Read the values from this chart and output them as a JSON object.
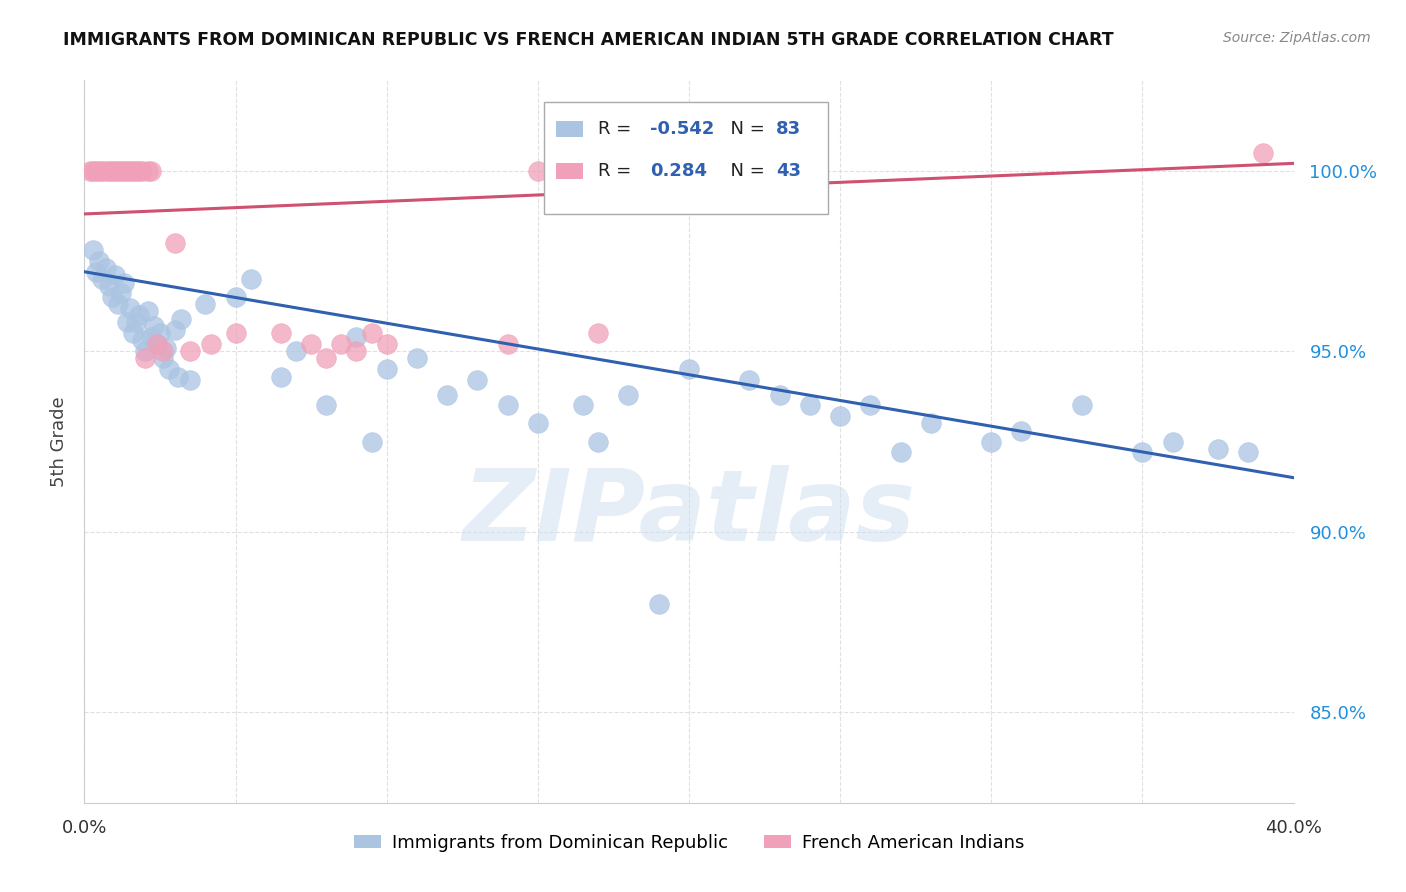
{
  "title": "IMMIGRANTS FROM DOMINICAN REPUBLIC VS FRENCH AMERICAN INDIAN 5TH GRADE CORRELATION CHART",
  "source": "Source: ZipAtlas.com",
  "ylabel": "5th Grade",
  "y_ticks": [
    85.0,
    90.0,
    95.0,
    100.0
  ],
  "y_tick_labels": [
    "85.0%",
    "90.0%",
    "95.0%",
    "100.0%"
  ],
  "xlim": [
    0.0,
    40.0
  ],
  "ylim": [
    82.5,
    102.5
  ],
  "blue_color": "#aac4e2",
  "blue_line_color": "#3060b0",
  "pink_color": "#f0a0b8",
  "pink_line_color": "#d05070",
  "legend_R_blue": "-0.542",
  "legend_N_blue": "83",
  "legend_R_pink": "0.284",
  "legend_N_pink": "43",
  "legend_label_blue": "Immigrants from Dominican Republic",
  "legend_label_pink": "French American Indians",
  "watermark": "ZIPatlas",
  "blue_scatter_x": [
    0.3,
    0.4,
    0.5,
    0.6,
    0.7,
    0.8,
    0.9,
    1.0,
    1.1,
    1.2,
    1.3,
    1.4,
    1.5,
    1.6,
    1.7,
    1.8,
    1.9,
    2.0,
    2.1,
    2.2,
    2.3,
    2.4,
    2.5,
    2.6,
    2.7,
    2.8,
    3.0,
    3.1,
    3.2,
    3.5,
    4.0,
    5.0,
    5.5,
    6.5,
    7.0,
    8.0,
    9.0,
    9.5,
    10.0,
    11.0,
    12.0,
    13.0,
    14.0,
    15.0,
    16.5,
    17.0,
    18.0,
    19.0,
    20.0,
    22.0,
    23.0,
    24.0,
    25.0,
    26.0,
    27.0,
    28.0,
    30.0,
    31.0,
    33.0,
    35.0,
    36.0,
    37.5,
    38.5
  ],
  "blue_scatter_y": [
    97.8,
    97.2,
    97.5,
    97.0,
    97.3,
    96.8,
    96.5,
    97.1,
    96.3,
    96.6,
    96.9,
    95.8,
    96.2,
    95.5,
    95.8,
    96.0,
    95.3,
    95.0,
    96.1,
    95.4,
    95.7,
    95.2,
    95.5,
    94.8,
    95.1,
    94.5,
    95.6,
    94.3,
    95.9,
    94.2,
    96.3,
    96.5,
    97.0,
    94.3,
    95.0,
    93.5,
    95.4,
    92.5,
    94.5,
    94.8,
    93.8,
    94.2,
    93.5,
    93.0,
    93.5,
    92.5,
    93.8,
    88.0,
    94.5,
    94.2,
    93.8,
    93.5,
    93.2,
    93.5,
    92.2,
    93.0,
    92.5,
    92.8,
    93.5,
    92.2,
    92.5,
    92.3,
    92.2
  ],
  "pink_scatter_x": [
    0.2,
    0.3,
    0.4,
    0.5,
    0.6,
    0.7,
    0.8,
    0.9,
    1.0,
    1.1,
    1.2,
    1.3,
    1.4,
    1.5,
    1.6,
    1.7,
    1.8,
    1.9,
    2.0,
    2.1,
    2.2,
    2.4,
    2.6,
    3.0,
    3.5,
    4.2,
    5.0,
    6.5,
    7.5,
    8.0,
    8.5,
    9.0,
    9.5,
    10.0,
    14.0,
    15.0,
    16.0,
    17.0,
    18.0,
    39.0
  ],
  "pink_scatter_y": [
    100.0,
    100.0,
    100.0,
    100.0,
    100.0,
    100.0,
    100.0,
    100.0,
    100.0,
    100.0,
    100.0,
    100.0,
    100.0,
    100.0,
    100.0,
    100.0,
    100.0,
    100.0,
    94.8,
    100.0,
    100.0,
    95.2,
    95.0,
    98.0,
    95.0,
    95.2,
    95.5,
    95.5,
    95.2,
    94.8,
    95.2,
    95.0,
    95.5,
    95.2,
    95.2,
    100.0,
    100.0,
    95.5,
    100.0,
    100.5
  ],
  "blue_line_x0": 0.0,
  "blue_line_x1": 40.0,
  "blue_line_y0": 97.2,
  "blue_line_y1": 91.5,
  "pink_line_x0": 0.0,
  "pink_line_x1": 40.0,
  "pink_line_y0": 98.8,
  "pink_line_y1": 100.2,
  "grid_color": "#dddddd",
  "tick_color_y": "#2090dd",
  "tick_color_x": "#333333",
  "spine_color": "#cccccc"
}
